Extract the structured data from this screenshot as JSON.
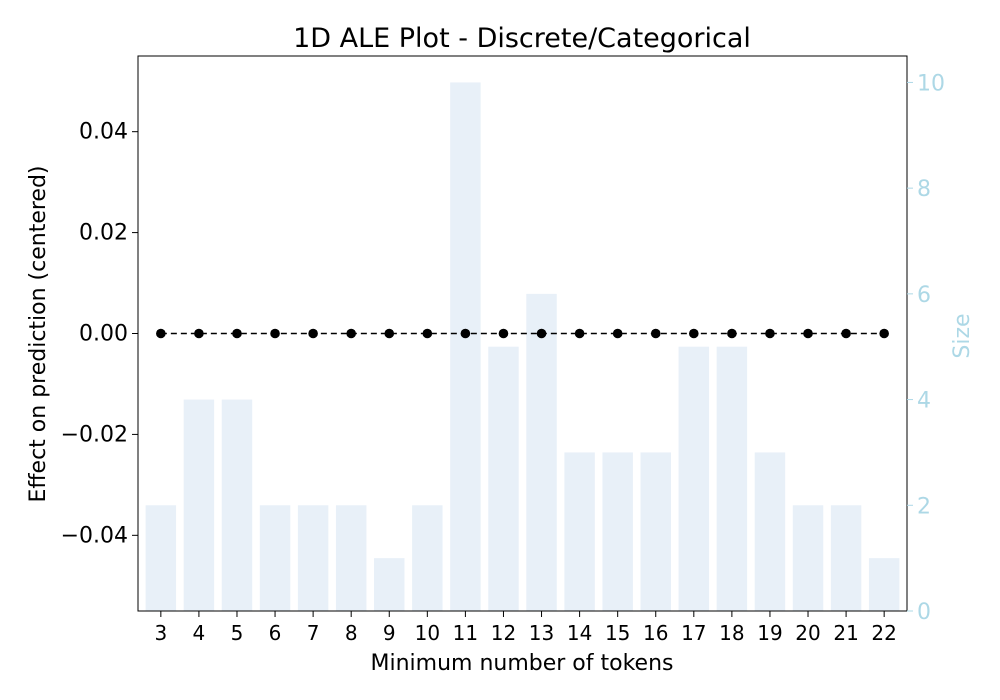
{
  "chart_data": {
    "type": "bar",
    "title": "1D ALE Plot - Discrete/Categorical",
    "xlabel": "Minimum number of tokens",
    "ylabel": "Effect on prediction (centered)",
    "y2label": "Size",
    "categories": [
      "3",
      "4",
      "5",
      "6",
      "7",
      "8",
      "9",
      "10",
      "11",
      "12",
      "13",
      "14",
      "15",
      "16",
      "17",
      "18",
      "19",
      "20",
      "21",
      "22"
    ],
    "ylim": [
      -0.055,
      0.055
    ],
    "yticks": [
      -0.04,
      -0.02,
      0.0,
      0.02,
      0.04
    ],
    "ytick_labels": [
      "−0.04",
      "−0.02",
      "0.00",
      "0.02",
      "0.04"
    ],
    "y2lim": [
      0,
      10.5
    ],
    "y2ticks": [
      0,
      2,
      4,
      6,
      8,
      10
    ],
    "y2tick_labels": [
      "0",
      "2",
      "4",
      "6",
      "8",
      "10"
    ],
    "series": [
      {
        "kind": "bar",
        "axis": "right",
        "values": [
          2,
          4,
          4,
          2,
          2,
          2,
          1,
          2,
          10,
          5,
          6,
          3,
          3,
          3,
          5,
          5,
          3,
          2,
          2,
          1
        ]
      },
      {
        "kind": "line",
        "axis": "left",
        "line_style": "dashed",
        "marker": "circle",
        "values": [
          0,
          0,
          0,
          0,
          0,
          0,
          0,
          0,
          0,
          0,
          0,
          0,
          0,
          0,
          0,
          0,
          0,
          0,
          0,
          0
        ]
      }
    ],
    "grid": false,
    "colors": {
      "bar": "#e8f0f8",
      "line": "#000000",
      "right_axis": "#add8e6",
      "axis": "#000000"
    }
  }
}
